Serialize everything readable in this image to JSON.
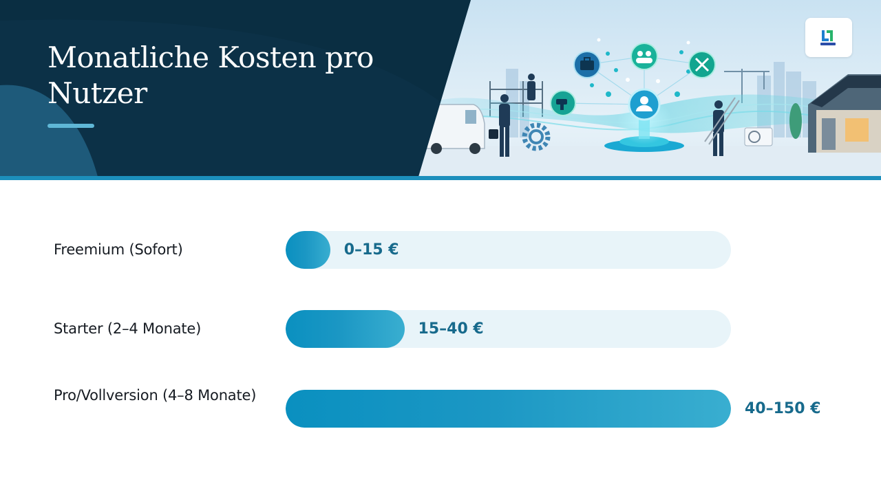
{
  "header": {
    "title": "Monatliche Kosten pro Nutzer",
    "logo_icon": "brand-logo-icon",
    "illustration_icons": [
      "briefcase-icon",
      "team-icon",
      "tools-icon",
      "drill-icon",
      "user-icon",
      "gear-icon"
    ]
  },
  "colors": {
    "navy": "#0c3147",
    "accent": "#1c8fbc",
    "bar_fill": "#0a90c0",
    "bar_track": "#e8f4f9",
    "value_text": "#176a8c"
  },
  "chart_data": {
    "type": "bar",
    "orientation": "horizontal",
    "unit": "€",
    "categories": [
      "Freemium (Sofort)",
      "Starter (2–4 Monate)",
      "Pro/Vollversion (4–8 Monate)"
    ],
    "ranges": [
      [
        0,
        15
      ],
      [
        15,
        40
      ],
      [
        40,
        150
      ]
    ],
    "values": [
      15,
      40,
      150
    ],
    "data_labels": [
      "0–15 €",
      "15–40 €",
      "40–150 €"
    ],
    "xlim": [
      0,
      150
    ],
    "grid": false,
    "legend": "none"
  }
}
